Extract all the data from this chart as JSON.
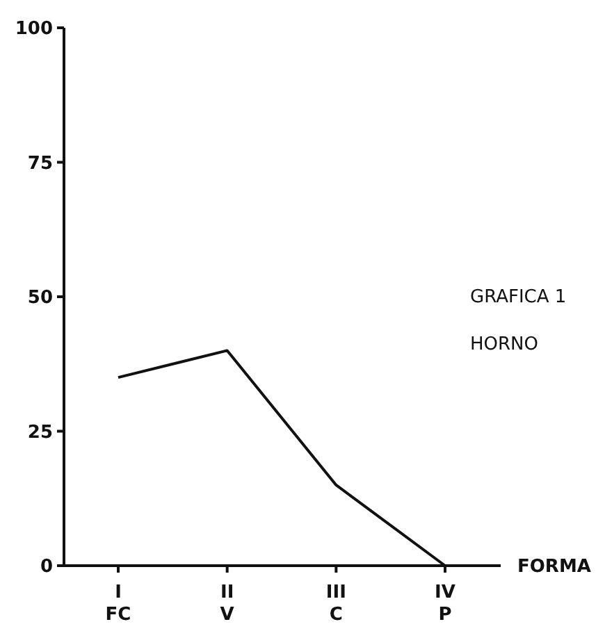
{
  "chart_data": {
    "type": "line",
    "title": "GRAFICA 1",
    "subtitle": "HORNO",
    "xlabel": "FORMA",
    "categories": [
      "I\nFC",
      "II\nV",
      "III\nC",
      "IV\nP"
    ],
    "series": [
      {
        "color": "#111111",
        "values": [
          35,
          40,
          15,
          0
        ]
      }
    ],
    "ylim": [
      0,
      100
    ],
    "yticks": [
      0,
      25,
      50,
      75,
      100
    ],
    "grid": false,
    "marker": "none",
    "line_style": "solid"
  }
}
